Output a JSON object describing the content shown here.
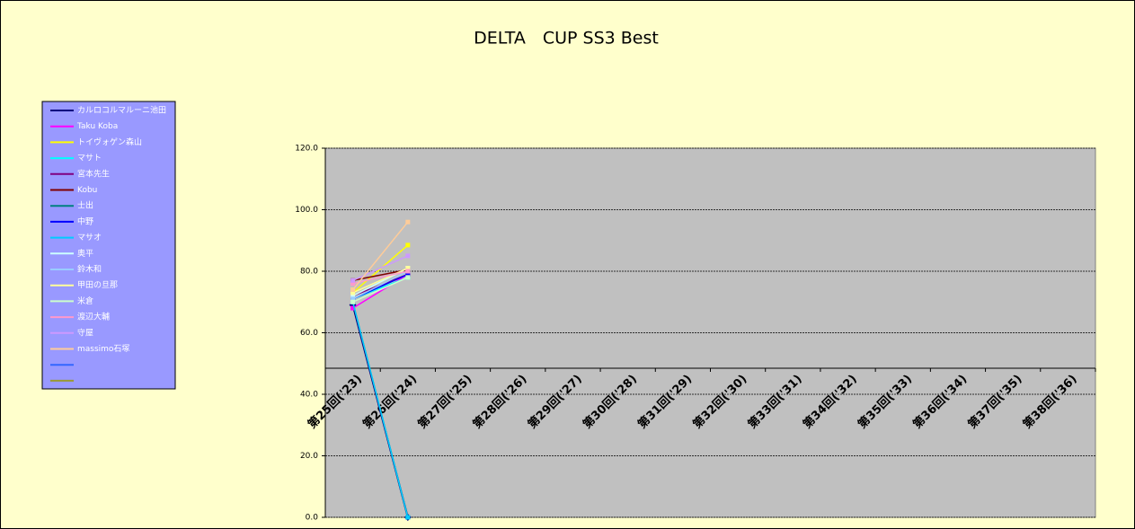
{
  "chart_data": {
    "type": "line",
    "title": "DELTA　CUP SS3 Best",
    "categories": [
      "第25回('23)",
      "第26回('24)",
      "第27回('25)",
      "第28回('26)",
      "第29回('27)",
      "第30回('28)",
      "第31回('29)",
      "第32回('30)",
      "第33回('31)",
      "第34回('32)",
      "第35回('33)",
      "第36回('34)",
      "第37回('35)",
      "第38回('36)"
    ],
    "ylim": [
      0,
      120
    ],
    "yticks": [
      {
        "value": 0,
        "label": "0.0"
      },
      {
        "value": 20,
        "label": "20.0"
      },
      {
        "value": 40,
        "label": "40.0"
      },
      {
        "value": 60,
        "label": "60.0"
      },
      {
        "value": 80,
        "label": "80.0"
      },
      {
        "value": 100,
        "label": "100.0"
      },
      {
        "value": 120,
        "label": "120.0"
      }
    ],
    "grid": true,
    "legend": "left",
    "series": [
      {
        "name": "カルロコルマルーニ池田",
        "color": "#000080",
        "values": [
          69,
          0,
          null,
          null,
          null,
          null,
          null,
          null,
          null,
          null,
          null,
          null,
          null,
          null
        ]
      },
      {
        "name": "Taku  Koba",
        "color": "#ff00ff",
        "values": [
          68,
          79,
          null,
          null,
          null,
          null,
          null,
          null,
          null,
          null,
          null,
          null,
          null,
          null
        ]
      },
      {
        "name": "トイヴォゲン森山",
        "color": "#ffff00",
        "values": [
          73,
          88.5,
          null,
          null,
          null,
          null,
          null,
          null,
          null,
          null,
          null,
          null,
          null,
          null
        ]
      },
      {
        "name": "マサト",
        "color": "#00ffff",
        "values": [
          71,
          78,
          null,
          null,
          null,
          null,
          null,
          null,
          null,
          null,
          null,
          null,
          null,
          null
        ]
      },
      {
        "name": "宮本先生",
        "color": "#800080",
        "values": [
          72,
          79,
          null,
          null,
          null,
          null,
          null,
          null,
          null,
          null,
          null,
          null,
          null,
          null
        ]
      },
      {
        "name": "Kobu",
        "color": "#800000",
        "values": [
          77,
          80.5,
          null,
          null,
          null,
          null,
          null,
          null,
          null,
          null,
          null,
          null,
          null,
          null
        ]
      },
      {
        "name": "士出",
        "color": "#008080",
        "values": [
          70,
          0,
          null,
          null,
          null,
          null,
          null,
          null,
          null,
          null,
          null,
          null,
          null,
          null
        ]
      },
      {
        "name": "中野",
        "color": "#0000ff",
        "values": [
          71,
          79,
          null,
          null,
          null,
          null,
          null,
          null,
          null,
          null,
          null,
          null,
          null,
          null
        ]
      },
      {
        "name": "マサオ",
        "color": "#00ccff",
        "values": [
          70,
          0,
          null,
          null,
          null,
          null,
          null,
          null,
          null,
          null,
          null,
          null,
          null,
          null
        ]
      },
      {
        "name": "奥平",
        "color": "#ccffff",
        "values": [
          72,
          81,
          null,
          null,
          null,
          null,
          null,
          null,
          null,
          null,
          null,
          null,
          null,
          null
        ]
      },
      {
        "name": "鈴木和",
        "color": "#99ccff",
        "values": [
          71,
          80,
          null,
          null,
          null,
          null,
          null,
          null,
          null,
          null,
          null,
          null,
          null,
          null
        ]
      },
      {
        "name": "甲田の旦那",
        "color": "#ffff99",
        "values": [
          73,
          81,
          null,
          null,
          null,
          null,
          null,
          null,
          null,
          null,
          null,
          null,
          null,
          null
        ]
      },
      {
        "name": "米倉",
        "color": "#ccffcc",
        "values": [
          70,
          78,
          null,
          null,
          null,
          null,
          null,
          null,
          null,
          null,
          null,
          null,
          null,
          null
        ]
      },
      {
        "name": "渡辺大輔",
        "color": "#ff99cc",
        "values": [
          76,
          80,
          null,
          null,
          null,
          null,
          null,
          null,
          null,
          null,
          null,
          null,
          null,
          null
        ]
      },
      {
        "name": "守屋",
        "color": "#cc99ff",
        "values": [
          77,
          85,
          null,
          null,
          null,
          null,
          null,
          null,
          null,
          null,
          null,
          null,
          null,
          null
        ]
      },
      {
        "name": "massimo石塚",
        "color": "#ffcc99",
        "values": [
          74,
          96,
          null,
          null,
          null,
          null,
          null,
          null,
          null,
          null,
          null,
          null,
          null,
          null
        ]
      },
      {
        "name": null,
        "color": "#3366ff",
        "values": [
          null,
          null,
          null,
          null,
          null,
          null,
          null,
          null,
          null,
          null,
          null,
          null,
          null,
          null
        ]
      },
      {
        "name": null,
        "color": "#999933",
        "values": [
          null,
          null,
          null,
          null,
          null,
          null,
          null,
          null,
          null,
          null,
          null,
          null,
          null,
          null
        ]
      }
    ]
  }
}
